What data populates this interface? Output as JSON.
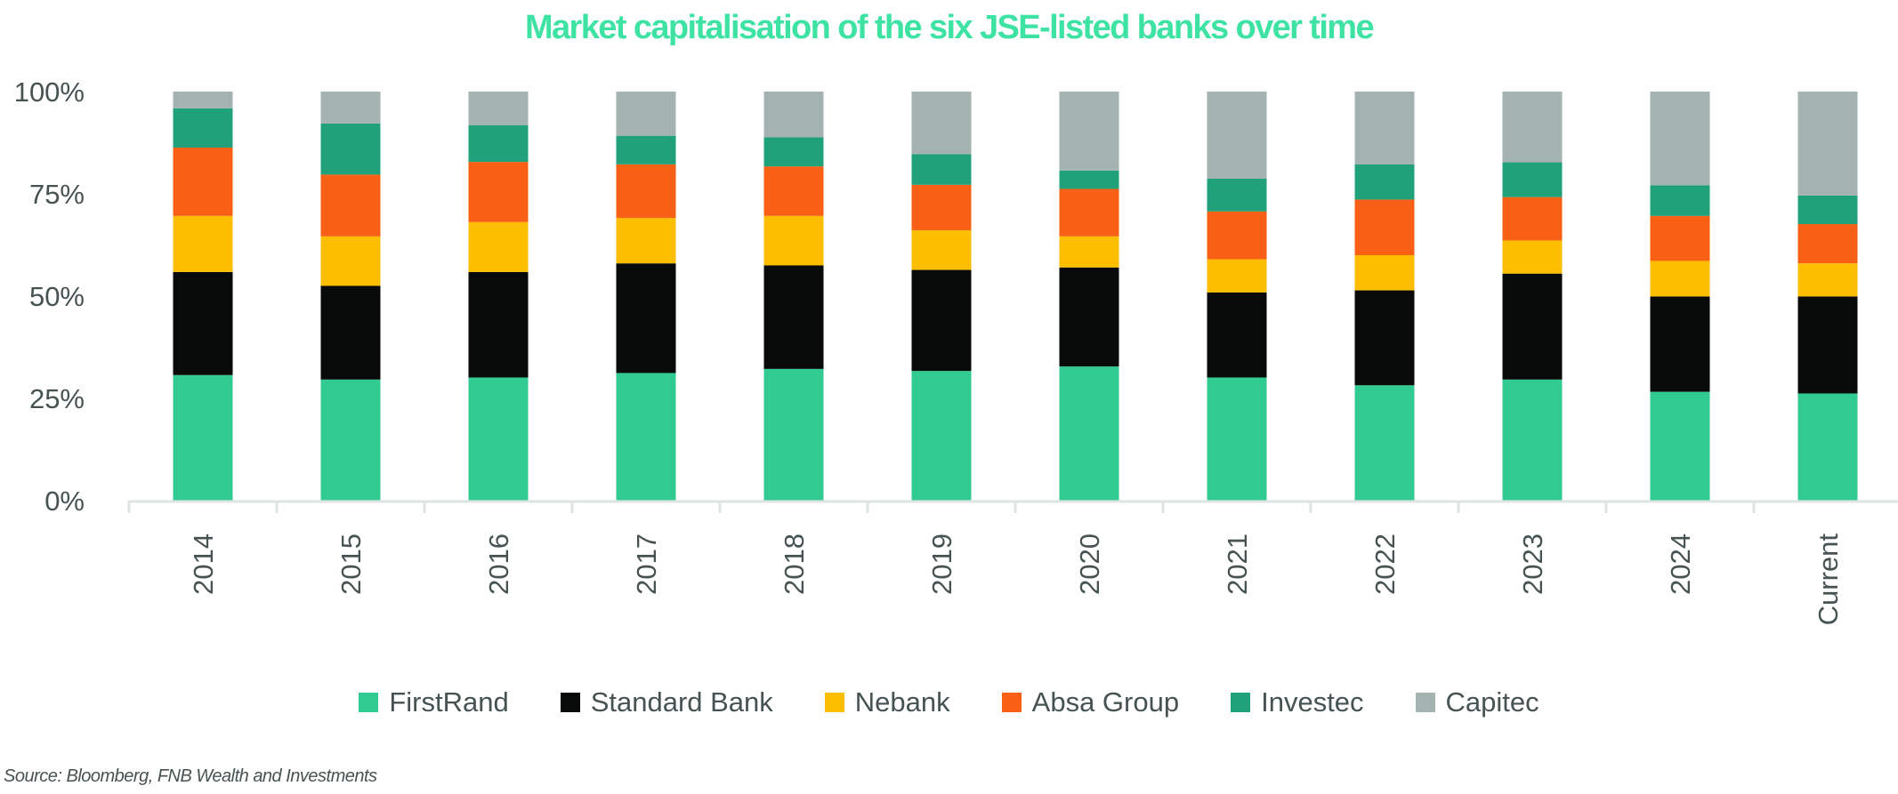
{
  "chart_data": {
    "type": "bar",
    "stacked": true,
    "title": "Market capitalisation of the six JSE-listed banks over time",
    "categories": [
      "2014",
      "2015",
      "2016",
      "2017",
      "2018",
      "2019",
      "2020",
      "2021",
      "2022",
      "2023",
      "2024",
      "Current"
    ],
    "ylim": [
      0,
      100
    ],
    "yticks": [
      "0%",
      "25%",
      "50%",
      "75%",
      "100%"
    ],
    "ytick_values": [
      0,
      25,
      50,
      75,
      100
    ],
    "grid": false,
    "legend_position": "bottom",
    "series": [
      {
        "name": "FirstRand",
        "color": "#31cb91",
        "values": [
          30.7,
          29.6,
          30.1,
          31.2,
          32.2,
          31.7,
          32.8,
          30.1,
          28.2,
          29.6,
          26.6,
          26.2
        ]
      },
      {
        "name": "Standard Bank",
        "color": "#080a09",
        "values": [
          25.2,
          22.9,
          25.8,
          26.8,
          25.3,
          24.7,
          24.2,
          20.8,
          23.2,
          25.9,
          23.3,
          23.7
        ]
      },
      {
        "name": "Nebank",
        "color": "#febe00",
        "values": [
          13.7,
          12.1,
          12.2,
          11.1,
          12.1,
          9.7,
          7.6,
          8.1,
          8.6,
          8.1,
          8.7,
          8.1
        ]
      },
      {
        "name": "Absa Group",
        "color": "#f76015",
        "values": [
          16.7,
          15.1,
          14.7,
          13.1,
          12.1,
          11.1,
          11.6,
          11.7,
          13.6,
          10.6,
          11.0,
          9.6
        ]
      },
      {
        "name": "Investec",
        "color": "#20a179",
        "values": [
          9.6,
          12.5,
          9.0,
          7.0,
          7.1,
          7.5,
          4.5,
          8.0,
          8.6,
          8.5,
          7.5,
          7.0
        ]
      },
      {
        "name": "Capitec",
        "color": "#a4b2b0",
        "values": [
          4.1,
          7.8,
          8.2,
          10.8,
          11.2,
          15.3,
          19.3,
          21.3,
          17.8,
          17.3,
          22.9,
          25.4
        ]
      }
    ]
  },
  "source": "Source: Bloomberg, FNB Wealth and Investments"
}
